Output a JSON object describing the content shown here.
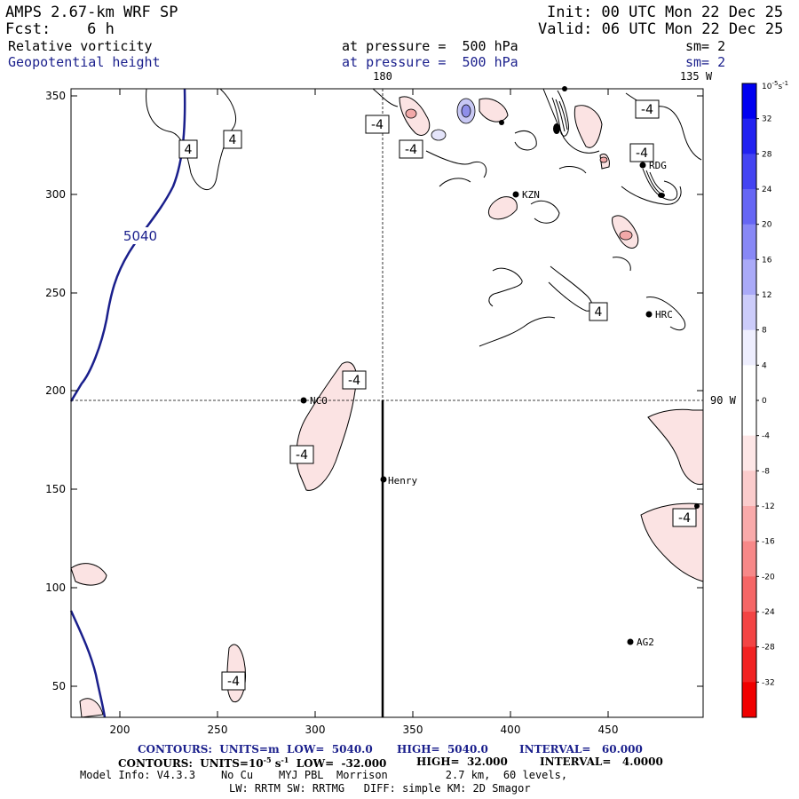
{
  "header": {
    "model": "AMPS 2.67-km WRF SP",
    "init": "Init: 00 UTC Mon 22 Dec 25",
    "fcst": "Fcst:    6 h",
    "valid": "Valid: 06 UTC Mon 22 Dec 25",
    "field1": "Relative vorticity",
    "field1_level": "at pressure =  500 hPa",
    "field1_sm": "sm= 2",
    "field2": "Geopotential height",
    "field2_level": "at pressure =  500 hPa",
    "field2_sm": "sm= 2"
  },
  "map": {
    "lon_labels": [
      "180",
      "135 W",
      "90 W"
    ],
    "x_ticks": [
      "200",
      "250",
      "300",
      "350",
      "400",
      "450"
    ],
    "y_ticks": [
      "350",
      "300",
      "250",
      "200",
      "150",
      "100",
      "50"
    ],
    "stations": [
      {
        "name": "NCO"
      },
      {
        "name": "Henry"
      },
      {
        "name": "KZN"
      },
      {
        "name": "RDG"
      },
      {
        "name": "HRC"
      },
      {
        "name": "AG2"
      }
    ],
    "contour_labels": {
      "height": "5040",
      "vort_pos": "4",
      "vort_neg": "-4"
    }
  },
  "colorbar": {
    "units": "10",
    "units_exp": "-5",
    "units_tail": "s",
    "units_tail_exp": "-1",
    "labels": [
      "32",
      "28",
      "24",
      "20",
      "16",
      "12",
      "8",
      "4",
      "0",
      "-4",
      "-8",
      "-12",
      "-16",
      "-20",
      "-24",
      "-28",
      "-32"
    ],
    "colors": [
      "#0000f0",
      "#2222f0",
      "#4444f2",
      "#6666f4",
      "#8888f6",
      "#aaaaf8",
      "#ccccfa",
      "#eeeefe",
      "#ffffff",
      "#ffffff",
      "#fde6e6",
      "#fbcccc",
      "#f9aaaa",
      "#f78888",
      "#f56666",
      "#f34444",
      "#f12222",
      "#f00000"
    ]
  },
  "footer": {
    "line1_a": "CONTOURS:  UNITS=m  LOW=  5040.0",
    "line1_b": "HIGH=  5040.0",
    "line1_c": "INTERVAL=   60.000",
    "line2_a": "CONTOURS:  UNITS=10",
    "line2_exp": "-5",
    "line2_b": " s",
    "line2_exp2": "-1",
    "line2_c": "  LOW=  -32.000",
    "line2_d": "HIGH=  32.000",
    "line2_e": "INTERVAL=   4.0000",
    "line3": "Model Info: V4.3.3    No Cu    MYJ PBL  Morrison         2.7 km,  60 levels,",
    "line4": "LW: RRTM SW: RRTMG   DIFF: simple KM: 2D Smagor"
  }
}
